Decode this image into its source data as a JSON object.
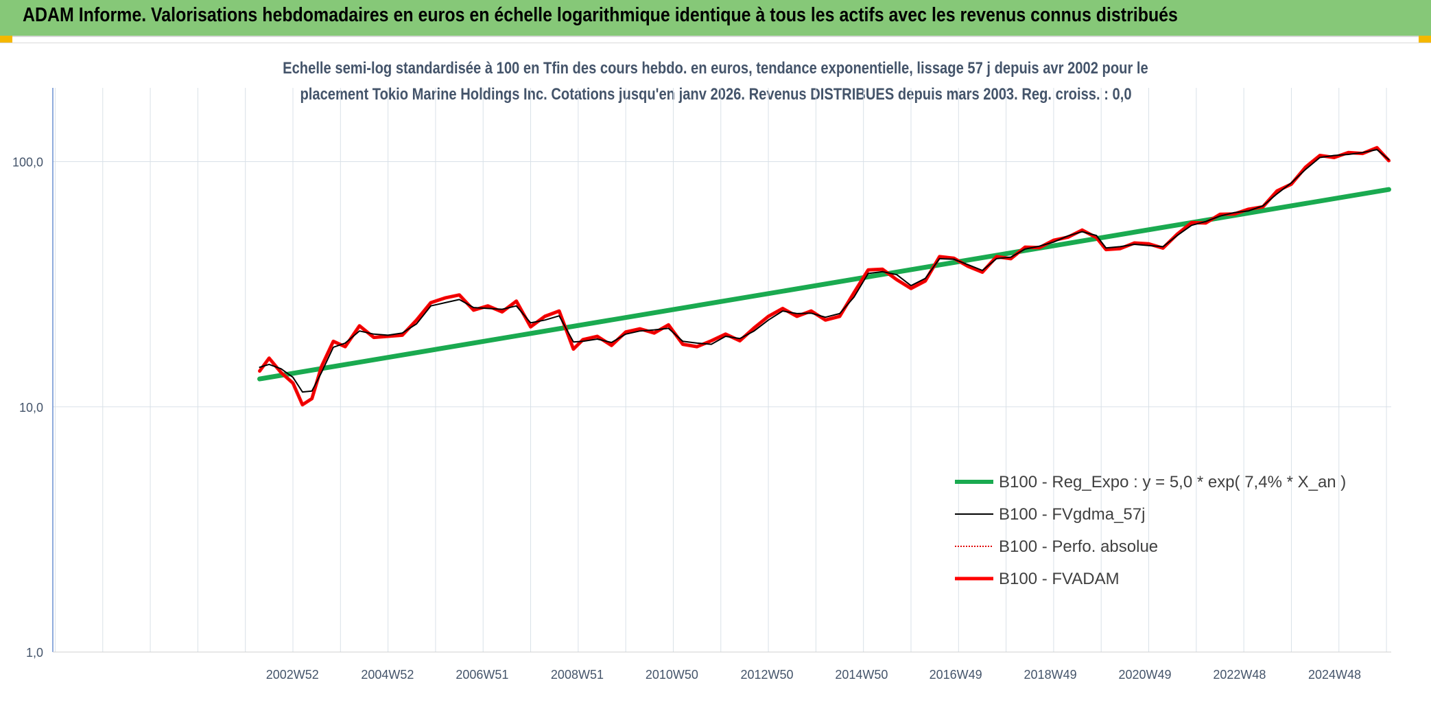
{
  "banner": {
    "title": "ADAM Informe. Valorisations hebdomadaires en euros en échelle logarithmique identique à tous les actifs avec les revenus connus distribués"
  },
  "colors": {
    "banner_bg": "#86c878",
    "corner_marks": "#f5b800",
    "subtitle_text": "#44546a",
    "reg_expo": "#1aaa50",
    "fvgdma": "#000000",
    "perfo": "#e00000",
    "fvadam": "#ff0000",
    "grid": "#d9e1e8",
    "axis_text": "#44546a"
  },
  "chart_data": {
    "type": "line",
    "title_line1": "Echelle semi-log standardisée à 100 en Tfin des cours hebdo. en euros, tendance exponentielle, lissage 57 j depuis avr 2002 pour le",
    "title_line2": "placement Tokio Marine Holdings Inc. Cotations jusqu'en janv 2026. Revenus DISTRIBUES depuis mars 2003. Reg. croiss. : 0,0",
    "y_scale": "log",
    "ylim": [
      1,
      200
    ],
    "y_ticks": [
      1,
      10,
      100
    ],
    "y_tick_labels": [
      "1,0",
      "10,0",
      "100,0"
    ],
    "x_unit": "year",
    "xlim": [
      1997.95,
      2026.1
    ],
    "x_tick_positions": [
      2002.99,
      2004.99,
      2006.98,
      2008.98,
      2010.97,
      2012.97,
      2014.96,
      2016.94,
      2018.93,
      2020.92,
      2022.91,
      2024.91
    ],
    "x_tick_labels": [
      "2002W52",
      "2004W52",
      "2006W51",
      "2008W51",
      "2010W50",
      "2012W50",
      "2014W50",
      "2016W49",
      "2018W49",
      "2020W49",
      "2022W48",
      "2024W48"
    ],
    "grid": true,
    "legend_position": "bottom-right",
    "series": [
      {
        "name": "B100 - Reg_Expo : y = 5,0 * exp( 7,4% *  X_an )",
        "style": "thick-solid",
        "x": [
          2002.3,
          2026.05
        ],
        "values": [
          13.0,
          77.0
        ]
      },
      {
        "name": "B100 - FVgdma_57j",
        "style": "thin-solid",
        "x": [
          2002.3,
          2002.5,
          2002.75,
          2003.0,
          2003.2,
          2003.4,
          2003.6,
          2003.85,
          2004.1,
          2004.4,
          2004.7,
          2005.0,
          2005.3,
          2005.6,
          2005.9,
          2006.2,
          2006.5,
          2006.8,
          2007.1,
          2007.4,
          2007.7,
          2008.0,
          2008.3,
          2008.6,
          2008.9,
          2009.1,
          2009.4,
          2009.7,
          2010.0,
          2010.3,
          2010.6,
          2010.9,
          2011.2,
          2011.5,
          2011.8,
          2012.1,
          2012.4,
          2012.7,
          2013.0,
          2013.3,
          2013.6,
          2013.9,
          2014.2,
          2014.5,
          2014.8,
          2015.1,
          2015.4,
          2015.7,
          2016.0,
          2016.3,
          2016.6,
          2016.9,
          2017.2,
          2017.5,
          2017.8,
          2018.1,
          2018.4,
          2018.7,
          2019.0,
          2019.3,
          2019.6,
          2019.9,
          2020.1,
          2020.4,
          2020.7,
          2021.0,
          2021.3,
          2021.6,
          2021.9,
          2022.2,
          2022.5,
          2022.8,
          2023.1,
          2023.4,
          2023.7,
          2024.0,
          2024.3,
          2024.6,
          2024.9,
          2025.2,
          2025.5,
          2025.8,
          2026.05
        ],
        "values": [
          14.5,
          14.9,
          14.3,
          13.2,
          11.5,
          11.6,
          13.8,
          17.5,
          18.2,
          20.4,
          19.8,
          19.6,
          20.0,
          21.8,
          25.8,
          26.6,
          27.4,
          25.4,
          25.2,
          25.0,
          25.8,
          22.0,
          22.6,
          23.5,
          18.4,
          18.5,
          18.9,
          18.3,
          19.8,
          20.4,
          20.6,
          20.9,
          18.5,
          18.2,
          18.0,
          19.4,
          19.0,
          20.4,
          22.6,
          24.6,
          24.0,
          24.1,
          23.2,
          24.0,
          28.0,
          35.0,
          35.6,
          34.6,
          31.2,
          33.4,
          40.2,
          40.0,
          38.0,
          36.0,
          40.2,
          40.8,
          44.0,
          45.2,
          47.0,
          49.8,
          51.8,
          50.0,
          44.5,
          45.0,
          46.0,
          45.5,
          45.0,
          50.0,
          55.0,
          57.0,
          60.0,
          62.0,
          63.0,
          66.0,
          74.0,
          82.0,
          93.0,
          104.0,
          106.0,
          107.0,
          109.0,
          112.0,
          102.0
        ]
      },
      {
        "name": "B100 - Perfo. absolue",
        "style": "dotted",
        "x": [
          2002.3,
          2002.5,
          2002.75,
          2003.0,
          2003.2,
          2003.4,
          2003.6,
          2003.85,
          2004.1,
          2004.4,
          2004.7,
          2005.0,
          2005.3,
          2005.6,
          2005.9,
          2006.2,
          2006.5,
          2006.8,
          2007.1,
          2007.4,
          2007.7,
          2008.0,
          2008.3,
          2008.6,
          2008.9,
          2009.1,
          2009.4,
          2009.7,
          2010.0,
          2010.3,
          2010.6,
          2010.9,
          2011.2,
          2011.5,
          2011.8,
          2012.1,
          2012.4,
          2012.7,
          2013.0,
          2013.3,
          2013.6,
          2013.9,
          2014.2,
          2014.5,
          2014.8,
          2015.1,
          2015.4,
          2015.7,
          2016.0,
          2016.3,
          2016.6,
          2016.9,
          2017.2,
          2017.5,
          2017.8,
          2018.1,
          2018.4,
          2018.7,
          2019.0,
          2019.3,
          2019.6,
          2019.9,
          2020.1,
          2020.4,
          2020.7,
          2021.0,
          2021.3,
          2021.6,
          2021.9,
          2022.2,
          2022.5,
          2022.8,
          2023.1,
          2023.4,
          2023.7,
          2024.0,
          2024.3,
          2024.6,
          2024.9,
          2025.2,
          2025.5,
          2025.8,
          2026.05
        ],
        "values": [
          14.0,
          15.8,
          13.8,
          12.5,
          10.2,
          10.8,
          14.6,
          18.5,
          17.6,
          21.4,
          19.2,
          19.4,
          19.6,
          22.6,
          26.6,
          27.8,
          28.6,
          24.8,
          25.8,
          24.4,
          27.0,
          21.2,
          23.4,
          24.6,
          17.2,
          18.8,
          19.4,
          17.8,
          20.2,
          20.8,
          20.0,
          21.6,
          18.0,
          17.6,
          18.6,
          19.8,
          18.6,
          21.0,
          23.4,
          25.2,
          23.4,
          24.6,
          22.6,
          23.4,
          29.2,
          36.2,
          36.4,
          33.0,
          30.4,
          32.6,
          41.0,
          40.4,
          37.4,
          35.4,
          41.0,
          40.2,
          44.8,
          44.6,
          47.8,
          49.2,
          52.6,
          49.0,
          43.8,
          44.2,
          46.6,
          46.2,
          44.4,
          50.6,
          56.4,
          56.2,
          61.0,
          61.2,
          64.0,
          65.4,
          76.0,
          81.0,
          95.0,
          106.0,
          104.0,
          109.0,
          108.0,
          114.0,
          101.0
        ]
      },
      {
        "name": "B100 - FVADAM",
        "style": "thick-solid",
        "x": [
          2002.3,
          2002.5,
          2002.75,
          2003.0,
          2003.2,
          2003.4,
          2003.6,
          2003.85,
          2004.1,
          2004.4,
          2004.7,
          2005.0,
          2005.3,
          2005.6,
          2005.9,
          2006.2,
          2006.5,
          2006.8,
          2007.1,
          2007.4,
          2007.7,
          2008.0,
          2008.3,
          2008.6,
          2008.9,
          2009.1,
          2009.4,
          2009.7,
          2010.0,
          2010.3,
          2010.6,
          2010.9,
          2011.2,
          2011.5,
          2011.8,
          2012.1,
          2012.4,
          2012.7,
          2013.0,
          2013.3,
          2013.6,
          2013.9,
          2014.2,
          2014.5,
          2014.8,
          2015.1,
          2015.4,
          2015.7,
          2016.0,
          2016.3,
          2016.6,
          2016.9,
          2017.2,
          2017.5,
          2017.8,
          2018.1,
          2018.4,
          2018.7,
          2019.0,
          2019.3,
          2019.6,
          2019.9,
          2020.1,
          2020.4,
          2020.7,
          2021.0,
          2021.3,
          2021.6,
          2021.9,
          2022.2,
          2022.5,
          2022.8,
          2023.1,
          2023.4,
          2023.7,
          2024.0,
          2024.3,
          2024.6,
          2024.9,
          2025.2,
          2025.5,
          2025.8,
          2026.05
        ],
        "values": [
          14.0,
          15.8,
          13.8,
          12.5,
          10.2,
          10.8,
          14.6,
          18.5,
          17.6,
          21.4,
          19.2,
          19.4,
          19.6,
          22.6,
          26.6,
          27.8,
          28.6,
          24.8,
          25.8,
          24.4,
          27.0,
          21.2,
          23.4,
          24.6,
          17.2,
          18.8,
          19.4,
          17.8,
          20.2,
          20.8,
          20.0,
          21.6,
          18.0,
          17.6,
          18.6,
          19.8,
          18.6,
          21.0,
          23.4,
          25.2,
          23.4,
          24.6,
          22.6,
          23.4,
          29.2,
          36.2,
          36.4,
          33.0,
          30.4,
          32.6,
          41.0,
          40.4,
          37.4,
          35.4,
          41.0,
          40.2,
          44.8,
          44.6,
          47.8,
          49.2,
          52.6,
          49.0,
          43.8,
          44.2,
          46.6,
          46.2,
          44.4,
          50.6,
          56.4,
          56.2,
          61.0,
          61.2,
          64.0,
          65.4,
          76.0,
          81.0,
          95.0,
          106.0,
          104.0,
          109.0,
          108.0,
          114.0,
          101.0
        ]
      }
    ]
  }
}
